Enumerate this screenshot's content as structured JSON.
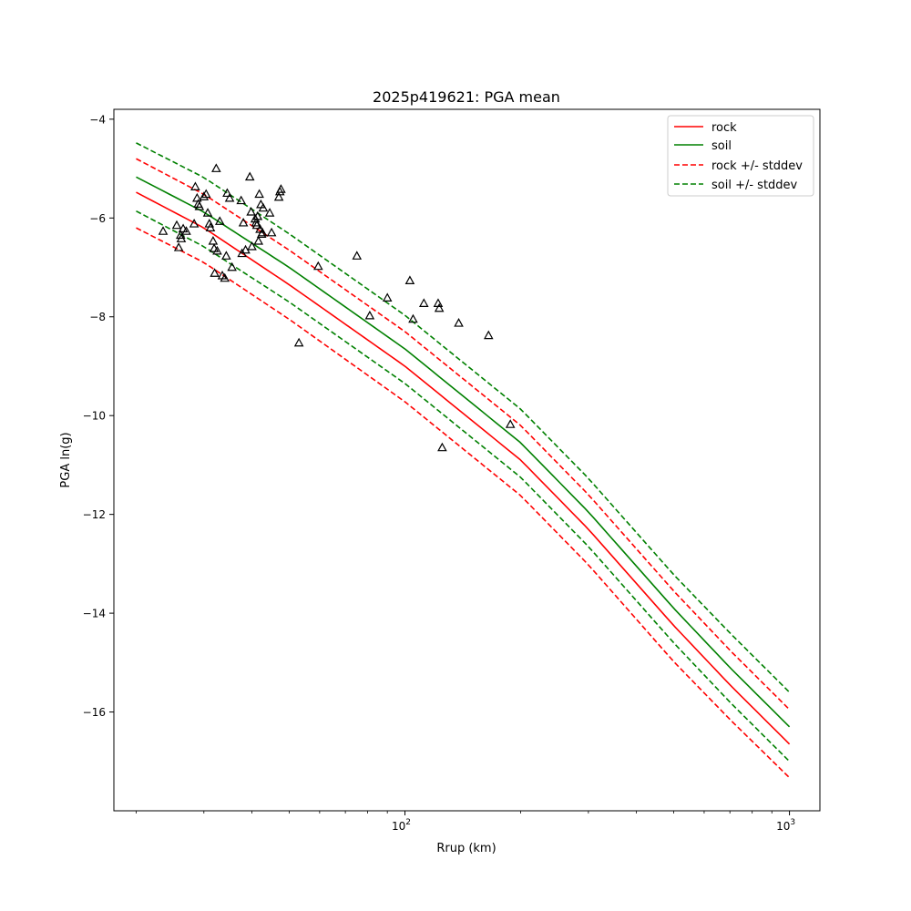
{
  "chart_data": {
    "type": "line",
    "title": "2025p419621: PGA mean",
    "xlabel": "Rrup (km)",
    "ylabel": "PGA ln(g)",
    "x_scale": "log",
    "xlim": [
      17.5,
      1200
    ],
    "ylim": [
      -18.0,
      -3.8
    ],
    "x_ticks": [
      {
        "value": 100,
        "label": "10",
        "exp": "2"
      },
      {
        "value": 1000,
        "label": "10",
        "exp": "3"
      }
    ],
    "y_ticks": [
      -4,
      -6,
      -8,
      -10,
      -12,
      -14,
      -16
    ],
    "y_tick_labels": [
      "−4",
      "−6",
      "−8",
      "−10",
      "−12",
      "−14",
      "−16"
    ],
    "grid": false,
    "legend_position": "top-right",
    "legend": [
      "rock",
      "soil",
      "rock +/- stddev",
      "soil +/- stddev"
    ],
    "series": [
      {
        "name": "rock",
        "color": "#ff0000",
        "style": "solid",
        "x": [
          20,
          30,
          50,
          100,
          200,
          300,
          500,
          700,
          1000
        ],
        "y": [
          -5.48,
          -6.2,
          -7.35,
          -9.0,
          -10.9,
          -12.3,
          -14.25,
          -15.45,
          -16.65
        ]
      },
      {
        "name": "soil",
        "color": "#008000",
        "style": "solid",
        "x": [
          20,
          30,
          50,
          100,
          200,
          300,
          500,
          700,
          1000
        ],
        "y": [
          -5.17,
          -5.88,
          -7.0,
          -8.65,
          -10.55,
          -11.95,
          -13.9,
          -15.1,
          -16.3
        ]
      },
      {
        "name": "rock + stddev",
        "legend_group": "rock +/- stddev",
        "color": "#ff0000",
        "style": "dashed",
        "x": [
          20,
          30,
          50,
          100,
          200,
          300,
          500,
          700,
          1000
        ],
        "y": [
          -4.8,
          -5.52,
          -6.65,
          -8.3,
          -10.2,
          -11.6,
          -13.55,
          -14.75,
          -15.95
        ]
      },
      {
        "name": "rock - stddev",
        "legend_group": "rock +/- stddev",
        "color": "#ff0000",
        "style": "dashed",
        "x": [
          20,
          30,
          50,
          100,
          200,
          300,
          500,
          700,
          1000
        ],
        "y": [
          -6.2,
          -6.9,
          -8.05,
          -9.72,
          -11.62,
          -13.02,
          -14.98,
          -16.15,
          -17.33
        ]
      },
      {
        "name": "soil + stddev",
        "legend_group": "soil +/- stddev",
        "color": "#008000",
        "style": "dashed",
        "x": [
          20,
          30,
          50,
          100,
          200,
          300,
          500,
          700,
          1000
        ],
        "y": [
          -4.48,
          -5.18,
          -6.32,
          -7.97,
          -9.87,
          -11.27,
          -13.22,
          -14.4,
          -15.6
        ]
      },
      {
        "name": "soil - stddev",
        "legend_group": "soil +/- stddev",
        "color": "#008000",
        "style": "dashed",
        "x": [
          20,
          30,
          50,
          100,
          200,
          300,
          500,
          700,
          1000
        ],
        "y": [
          -5.86,
          -6.58,
          -7.7,
          -9.35,
          -11.25,
          -12.65,
          -14.6,
          -15.8,
          -17.0
        ]
      }
    ],
    "observations": {
      "marker": "triangle-open",
      "color": "#000000",
      "points": [
        [
          23.5,
          -6.27
        ],
        [
          25.5,
          -6.15
        ],
        [
          25.8,
          -6.6
        ],
        [
          26.1,
          -6.35
        ],
        [
          26.2,
          -6.42
        ],
        [
          26.5,
          -6.22
        ],
        [
          27.0,
          -6.27
        ],
        [
          28.3,
          -6.12
        ],
        [
          28.5,
          -5.37
        ],
        [
          28.8,
          -5.6
        ],
        [
          29.0,
          -5.72
        ],
        [
          29.2,
          -5.77
        ],
        [
          30.0,
          -5.57
        ],
        [
          30.4,
          -5.52
        ],
        [
          30.7,
          -5.9
        ],
        [
          31.0,
          -6.12
        ],
        [
          31.2,
          -6.2
        ],
        [
          31.7,
          -6.47
        ],
        [
          31.9,
          -6.62
        ],
        [
          32.0,
          -7.12
        ],
        [
          32.3,
          -5.0
        ],
        [
          32.5,
          -6.67
        ],
        [
          33.0,
          -6.07
        ],
        [
          33.5,
          -7.17
        ],
        [
          34.0,
          -7.22
        ],
        [
          34.3,
          -6.77
        ],
        [
          34.5,
          -5.5
        ],
        [
          35.0,
          -5.6
        ],
        [
          35.5,
          -7.0
        ],
        [
          37.5,
          -5.65
        ],
        [
          37.7,
          -6.72
        ],
        [
          38.0,
          -6.1
        ],
        [
          38.5,
          -6.65
        ],
        [
          39.5,
          -5.17
        ],
        [
          39.8,
          -5.88
        ],
        [
          40.0,
          -6.58
        ],
        [
          40.8,
          -6.02
        ],
        [
          41.0,
          -6.1
        ],
        [
          41.2,
          -6.15
        ],
        [
          41.4,
          -5.97
        ],
        [
          41.6,
          -6.47
        ],
        [
          41.8,
          -5.52
        ],
        [
          42.0,
          -6.23
        ],
        [
          42.2,
          -5.73
        ],
        [
          42.4,
          -6.33
        ],
        [
          42.6,
          -6.3
        ],
        [
          42.8,
          -5.8
        ],
        [
          44.5,
          -5.9
        ],
        [
          45.0,
          -6.3
        ],
        [
          47.0,
          -5.58
        ],
        [
          47.3,
          -5.47
        ],
        [
          47.6,
          -5.42
        ],
        [
          53.0,
          -8.53
        ],
        [
          59.5,
          -6.98
        ],
        [
          75.0,
          -6.77
        ],
        [
          81.0,
          -7.98
        ],
        [
          90.0,
          -7.62
        ],
        [
          103.0,
          -7.27
        ],
        [
          105.0,
          -8.05
        ],
        [
          112.0,
          -7.73
        ],
        [
          122.0,
          -7.73
        ],
        [
          122.8,
          -7.83
        ],
        [
          125.0,
          -10.65
        ],
        [
          138.0,
          -8.13
        ],
        [
          165.0,
          -8.38
        ],
        [
          188.0,
          -10.18
        ]
      ]
    }
  }
}
